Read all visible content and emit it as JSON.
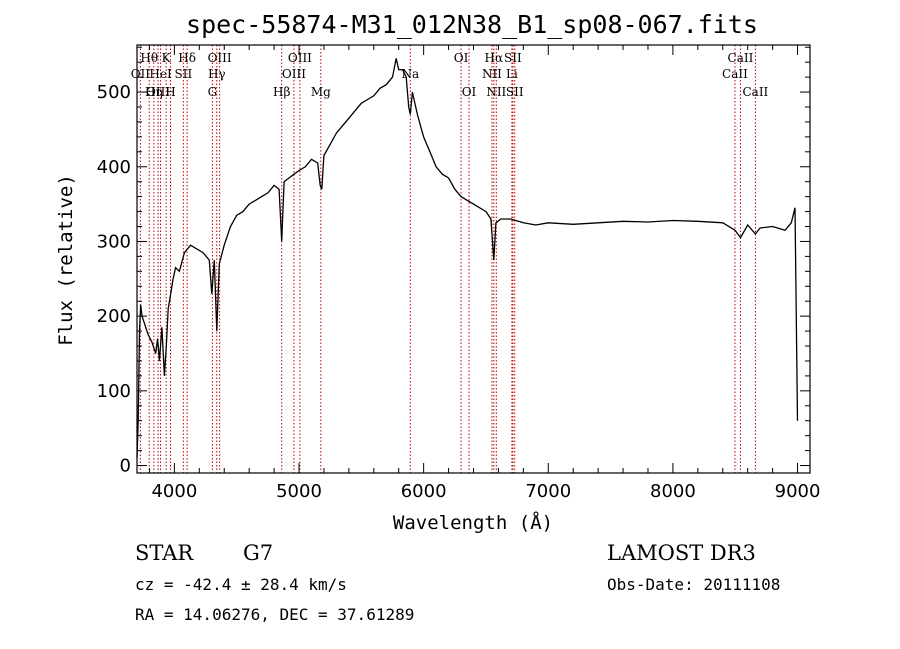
{
  "chart_data": {
    "type": "line",
    "title": "spec-55874-M31_012N38_B1_sp08-067.fits",
    "xlabel": "Wavelength (Å)",
    "ylabel": "Flux (relative)",
    "xlim": [
      3700,
      9100
    ],
    "ylim": [
      -10,
      563
    ],
    "xticks": [
      4000,
      5000,
      6000,
      7000,
      8000,
      9000
    ],
    "yticks": [
      0,
      100,
      200,
      300,
      400,
      500
    ],
    "series": [
      {
        "name": "spectrum",
        "x": [
          3700,
          3710,
          3720,
          3730,
          3740,
          3760,
          3790,
          3820,
          3850,
          3865,
          3880,
          3900,
          3920,
          3935,
          3950,
          3970,
          3990,
          4010,
          4040,
          4080,
          4130,
          4180,
          4230,
          4280,
          4300,
          4320,
          4340,
          4360,
          4400,
          4450,
          4500,
          4550,
          4600,
          4650,
          4700,
          4750,
          4800,
          4840,
          4861,
          4880,
          4920,
          4960,
          5000,
          5050,
          5100,
          5150,
          5170,
          5183,
          5200,
          5250,
          5300,
          5350,
          5400,
          5450,
          5500,
          5550,
          5600,
          5650,
          5700,
          5750,
          5780,
          5800,
          5830,
          5860,
          5880,
          5893,
          5910,
          5950,
          6000,
          6050,
          6100,
          6150,
          6200,
          6250,
          6300,
          6350,
          6400,
          6450,
          6500,
          6540,
          6563,
          6580,
          6620,
          6700,
          6800,
          6900,
          7000,
          7200,
          7400,
          7600,
          7800,
          8000,
          8200,
          8400,
          8498,
          8542,
          8600,
          8662,
          8700,
          8800,
          8900,
          8950,
          8980,
          9000
        ],
        "values": [
          10,
          60,
          180,
          215,
          200,
          190,
          175,
          165,
          150,
          170,
          140,
          185,
          120,
          160,
          210,
          230,
          250,
          265,
          260,
          285,
          295,
          290,
          285,
          275,
          230,
          275,
          180,
          270,
          295,
          320,
          335,
          340,
          350,
          355,
          360,
          365,
          375,
          370,
          300,
          380,
          385,
          390,
          395,
          400,
          410,
          405,
          375,
          370,
          415,
          430,
          445,
          455,
          465,
          475,
          485,
          490,
          495,
          505,
          510,
          520,
          545,
          530,
          530,
          520,
          480,
          470,
          500,
          470,
          440,
          420,
          400,
          390,
          385,
          370,
          360,
          355,
          350,
          345,
          340,
          330,
          275,
          325,
          330,
          330,
          325,
          322,
          325,
          323,
          325,
          327,
          326,
          328,
          327,
          325,
          315,
          305,
          322,
          310,
          318,
          320,
          315,
          325,
          345,
          60
        ]
      }
    ],
    "line_marks": [
      {
        "name": "Hθ",
        "wl": 3798,
        "row": 1
      },
      {
        "name": "OII",
        "wl": 3727,
        "row": 2
      },
      {
        "name": "OIII",
        "wl": 3869,
        "row": 3
      },
      {
        "name": "Hη",
        "wl": 3835,
        "row": 3
      },
      {
        "name": "HeI",
        "wl": 3889,
        "row": 2
      },
      {
        "name": "K",
        "wl": 3934,
        "row": 1
      },
      {
        "name": "H",
        "wl": 3969,
        "row": 3
      },
      {
        "name": "SII",
        "wl": 4072,
        "row": 2
      },
      {
        "name": "Hδ",
        "wl": 4102,
        "row": 1
      },
      {
        "name": "G",
        "wl": 4305,
        "row": 3
      },
      {
        "name": "Hγ",
        "wl": 4340,
        "row": 2
      },
      {
        "name": "OIII",
        "wl": 4363,
        "row": 1
      },
      {
        "name": "Hβ",
        "wl": 4861,
        "row": 3
      },
      {
        "name": "OIII",
        "wl": 4959,
        "row": 2
      },
      {
        "name": "OIII",
        "wl": 5007,
        "row": 1
      },
      {
        "name": "Mg",
        "wl": 5175,
        "row": 3
      },
      {
        "name": "Na",
        "wl": 5893,
        "row": 2
      },
      {
        "name": "OI",
        "wl": 6300,
        "row": 1
      },
      {
        "name": "OI",
        "wl": 6364,
        "row": 3
      },
      {
        "name": "NII",
        "wl": 6548,
        "row": 2
      },
      {
        "name": "Hα",
        "wl": 6563,
        "row": 1
      },
      {
        "name": "NII",
        "wl": 6583,
        "row": 3
      },
      {
        "name": "Li",
        "wl": 6708,
        "row": 2
      },
      {
        "name": "SII",
        "wl": 6716,
        "row": 1
      },
      {
        "name": "SII",
        "wl": 6731,
        "row": 3
      },
      {
        "name": "CaII",
        "wl": 8498,
        "row": 2
      },
      {
        "name": "CaII",
        "wl": 8542,
        "row": 1
      },
      {
        "name": "CaII",
        "wl": 8662,
        "row": 3
      }
    ]
  },
  "info": {
    "class": "STAR",
    "subclass": "G7",
    "survey": "LAMOST DR3",
    "cz": "cz = -42.4 ± 28.4 km/s",
    "obs_date": "Obs-Date: 20111108",
    "radec": "RA =  14.06276, DEC =  37.61289"
  }
}
